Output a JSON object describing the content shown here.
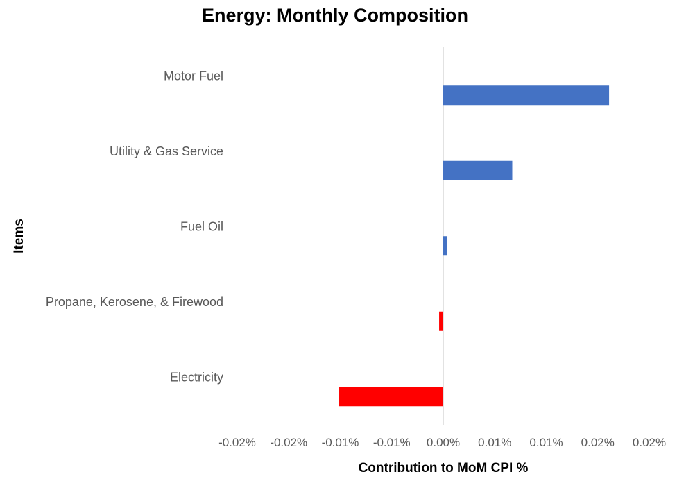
{
  "chart_data": {
    "type": "bar",
    "orientation": "horizontal",
    "title": "Energy: Monthly Composition",
    "xlabel": "Contribution to MoM CPI %",
    "ylabel": "Items",
    "categories": [
      "Motor Fuel",
      "Utility & Gas Service",
      "Fuel Oil",
      "Propane, Kerosene, & Firewood",
      "Electricity"
    ],
    "values": [
      0.0161,
      0.0067,
      0.0004,
      -0.0004,
      -0.0101
    ],
    "xlim": [
      -0.02,
      0.02
    ],
    "x_ticks": [
      -0.02,
      -0.015,
      -0.01,
      -0.005,
      0.0,
      0.005,
      0.01,
      0.015,
      0.02
    ],
    "x_tick_labels": [
      "-0.02%",
      "-0.02%",
      "-0.01%",
      "-0.01%",
      "0.00%",
      "0.01%",
      "0.01%",
      "0.02%",
      "0.02%"
    ],
    "grid": false,
    "legend": "none",
    "colors": {
      "positive": "#4472C4",
      "negative": "#FF0000",
      "zero_line": "#D9D9D9"
    }
  }
}
